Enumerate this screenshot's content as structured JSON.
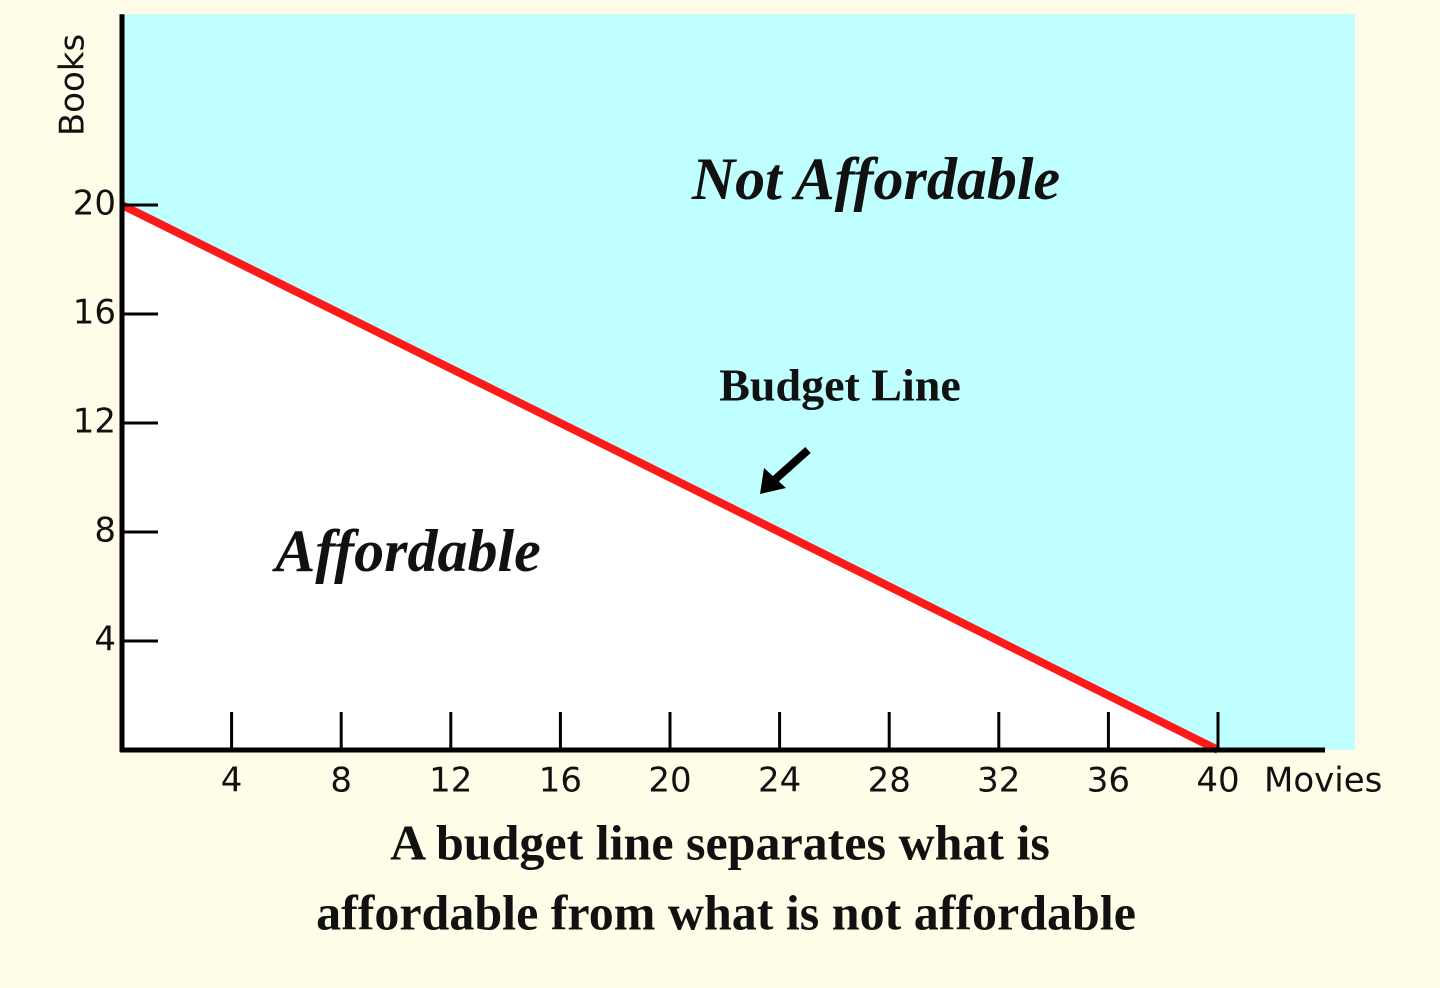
{
  "chart_data": {
    "type": "line",
    "x": [
      0,
      40
    ],
    "values": [
      20,
      0
    ],
    "color": "#ff1a1a",
    "xlim": [
      0,
      45
    ],
    "ylim": [
      0,
      27
    ],
    "xticks": [
      4,
      8,
      12,
      16,
      20,
      24,
      28,
      32,
      36,
      40
    ],
    "yticks": [
      4,
      8,
      12,
      16,
      20
    ],
    "xlabel": "Movies",
    "ylabel": "Books",
    "above_color": "#c0ffff",
    "below_color": "#ffffff",
    "annotations": {
      "above": "Not Affordable",
      "below": "Affordable",
      "line": "Budget Line"
    },
    "caption": [
      "A budget line separates what is",
      "affordable from what is not affordable"
    ]
  }
}
